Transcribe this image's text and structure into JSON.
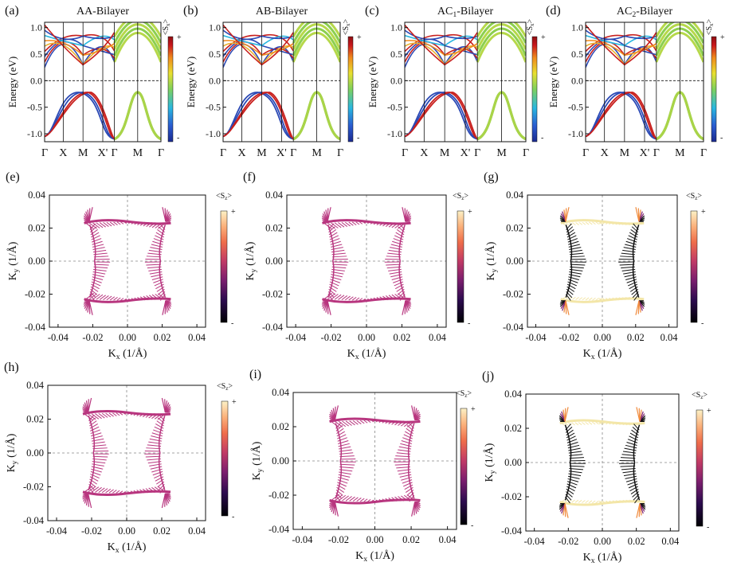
{
  "colors": {
    "band_colormap": [
      "#1b2a8f",
      "#2a5bd0",
      "#29b7e0",
      "#7fd15c",
      "#e8e030",
      "#f08a1c",
      "#c8161c",
      "#8e0f12"
    ],
    "spin_colormap": [
      "#000004",
      "#2c0b4e",
      "#7b1e6e",
      "#c03a66",
      "#ef6d4a",
      "#fbb07a",
      "#fcf1c6"
    ]
  },
  "band_panels": [
    {
      "label": "(a)",
      "title_main": "AA-Bilayer",
      "title_sub": "",
      "ylabel": "Energy (eV)",
      "yticks": [
        "1.0",
        "0.5",
        "0.0",
        "-0.5",
        "-1.0"
      ],
      "kpoints": [
        "Γ",
        "X",
        "M",
        "X'",
        "Γ",
        "M",
        "Γ"
      ],
      "cbar_label": "<S",
      "cbar_sub": "x",
      "cbar_close": ">",
      "cbar_plus": "+",
      "cbar_minus": "-"
    },
    {
      "label": "(b)",
      "title_main": "AB-Bilayer",
      "title_sub": "",
      "ylabel": "Energy (eV)",
      "yticks": [
        "1.0",
        "0.5",
        "0.0",
        "-0.5",
        "-1.0"
      ],
      "kpoints": [
        "Γ",
        "X",
        "M",
        "X'",
        "Γ",
        "M",
        "Γ"
      ],
      "cbar_label": "<S",
      "cbar_sub": "x",
      "cbar_close": ">",
      "cbar_plus": "+",
      "cbar_minus": "-"
    },
    {
      "label": "(c)",
      "title_main": "AC",
      "title_sub": "1",
      "title_rest": "-Bilayer",
      "ylabel": "Energy (eV)",
      "yticks": [
        "1.0",
        "0.5",
        "0.0",
        "-0.5",
        "-1.0"
      ],
      "kpoints": [
        "Γ",
        "X",
        "M",
        "X'",
        "Γ",
        "M",
        "Γ"
      ],
      "cbar_label": "<S",
      "cbar_sub": "x",
      "cbar_close": ">",
      "cbar_plus": "+",
      "cbar_minus": "-"
    },
    {
      "label": "(d)",
      "title_main": "AC",
      "title_sub": "2",
      "title_rest": "-Bilayer",
      "ylabel": "Energy (eV)",
      "yticks": [
        "1.0",
        "0.5",
        "0.0",
        "-0.5",
        "-1.0"
      ],
      "kpoints": [
        "Γ",
        "X",
        "M",
        "X'",
        "Γ",
        "M",
        "Γ"
      ],
      "cbar_label": "<S",
      "cbar_sub": "x",
      "cbar_close": ">",
      "cbar_plus": "+",
      "cbar_minus": "-"
    }
  ],
  "texture_panels": [
    {
      "label": "(e)",
      "style": "uniform",
      "xlabel": "K",
      "xsub": "x",
      "xunit": " (1/Å)",
      "ylabel": "K",
      "ysub": "y",
      "yunit": " (1/Å)",
      "xticks": [
        "-0.04",
        "-0.02",
        "0.00",
        "0.02",
        "0.04"
      ],
      "yticks": [
        "0.04",
        "0.02",
        "0.00",
        "-0.02",
        "-0.04"
      ],
      "cbar_label": "<S",
      "cbar_sub": "z",
      "cbar_close": ">",
      "cbar_plus": "+",
      "cbar_minus": "-"
    },
    {
      "label": "(f)",
      "style": "uniform",
      "xlabel": "K",
      "xsub": "x",
      "xunit": " (1/Å)",
      "ylabel": "K",
      "ysub": "y",
      "yunit": " (1/Å)",
      "xticks": [
        "-0.04",
        "-0.02",
        "0.00",
        "0.02",
        "0.04"
      ],
      "yticks": [
        "0.04",
        "0.02",
        "0.00",
        "-0.02",
        "-0.04"
      ],
      "cbar_label": "<S",
      "cbar_sub": "z",
      "cbar_close": ">",
      "cbar_plus": "+",
      "cbar_minus": "-"
    },
    {
      "label": "(g)",
      "style": "mixed",
      "xlabel": "K",
      "xsub": "x",
      "xunit": " (1/Å)",
      "ylabel": "K",
      "ysub": "y",
      "yunit": " (1/Å)",
      "xticks": [
        "-0.04",
        "-0.02",
        "0.00",
        "0.02",
        "0.04"
      ],
      "yticks": [
        "0.04",
        "0.02",
        "0.00",
        "-0.02",
        "-0.04"
      ],
      "cbar_label": "<S",
      "cbar_sub": "z",
      "cbar_close": ">",
      "cbar_plus": "+",
      "cbar_minus": "-"
    },
    {
      "label": "(h)",
      "style": "uniform",
      "xlabel": "K",
      "xsub": "x",
      "xunit": " (1/Å)",
      "ylabel": "K",
      "ysub": "y",
      "yunit": " (1/Å)",
      "xticks": [
        "-0.04",
        "-0.02",
        "0.00",
        "0.02",
        "0.04"
      ],
      "yticks": [
        "0.04",
        "0.02",
        "0.00",
        "-0.02",
        "-0.04"
      ],
      "cbar_label": "<S",
      "cbar_sub": "z",
      "cbar_close": ">",
      "cbar_plus": "+",
      "cbar_minus": "-"
    },
    {
      "label": "(i)",
      "style": "uniform",
      "xlabel": "K",
      "xsub": "x",
      "xunit": " (1/Å)",
      "ylabel": "K",
      "ysub": "y",
      "yunit": " (1/Å)",
      "xticks": [
        "-0.04",
        "-0.02",
        "0.00",
        "0.02",
        "0.04"
      ],
      "yticks": [
        "0.04",
        "0.02",
        "0.00",
        "-0.02",
        "-0.04"
      ],
      "cbar_label": "<S",
      "cbar_sub": "z",
      "cbar_close": ">",
      "cbar_plus": "+",
      "cbar_minus": "-"
    },
    {
      "label": "(j)",
      "style": "mixed",
      "xlabel": "K",
      "xsub": "x",
      "xunit": " (1/Å)",
      "ylabel": "K",
      "ysub": "y",
      "yunit": " (1/Å)",
      "xticks": [
        "-0.04",
        "-0.02",
        "0.00",
        "0.02",
        "0.04"
      ],
      "yticks": [
        "0.04",
        "0.02",
        "0.00",
        "-0.02",
        "-0.04"
      ],
      "cbar_label": "<S",
      "cbar_sub": "z",
      "cbar_close": ">",
      "cbar_plus": "+",
      "cbar_minus": "-"
    }
  ]
}
